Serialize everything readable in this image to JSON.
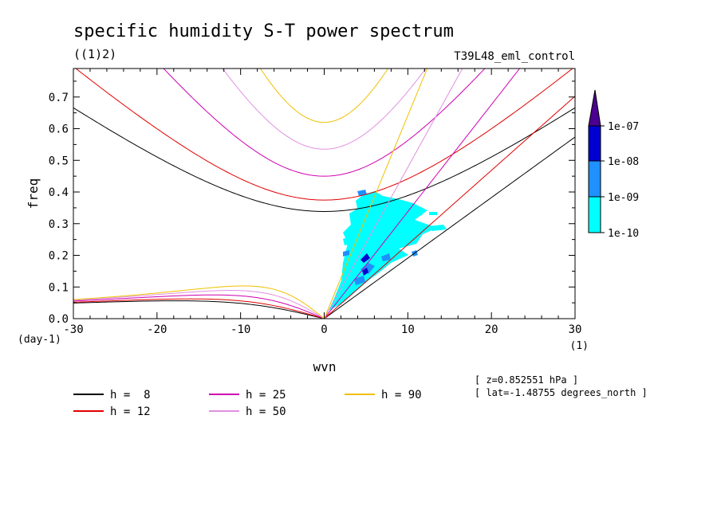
{
  "chart_data": {
    "type": "line",
    "title": "specific humidity S-T power spectrum",
    "subtitle_left": "((1)2)",
    "subtitle_right": "T39L48_eml_control",
    "xlabel": "wvn",
    "ylabel": "freq",
    "x_unit": "(1)",
    "y_unit": "(day-1)",
    "xlim": [
      -30,
      30
    ],
    "ylim": [
      0,
      0.79
    ],
    "x_ticks": [
      -30,
      -20,
      -10,
      0,
      10,
      20,
      30
    ],
    "x_tick_labels": [
      "-30",
      "-20",
      "-10",
      "0",
      "10",
      "20",
      "30"
    ],
    "y_ticks": [
      0,
      0.1,
      0.2,
      0.3,
      0.4,
      0.5,
      0.6,
      0.7
    ],
    "y_tick_labels": [
      "0.0",
      "0.1",
      "0.2",
      "0.3",
      "0.4",
      "0.5",
      "0.6",
      "0.7"
    ],
    "series": [
      {
        "name": "h =  8",
        "h": 8,
        "color": "#000000"
      },
      {
        "name": "h = 12",
        "h": 12,
        "color": "#e00000"
      },
      {
        "name": "h = 25",
        "h": 25,
        "color": "#d000b0"
      },
      {
        "name": "h = 50",
        "h": 50,
        "color": "#e090e0"
      },
      {
        "name": "h = 90",
        "h": 90,
        "color": "#f0c000"
      }
    ],
    "colorbar": {
      "labels": [
        "1e-10",
        "1e-09",
        "1e-08",
        "1e-07"
      ],
      "colors": [
        "#00ffff",
        "#1e90ff",
        "#0000d0",
        "#4b0090"
      ]
    },
    "annotations": [
      "[ z=0.852551 hPa ]",
      "[ lat=-1.48755 degrees_north ]"
    ]
  }
}
